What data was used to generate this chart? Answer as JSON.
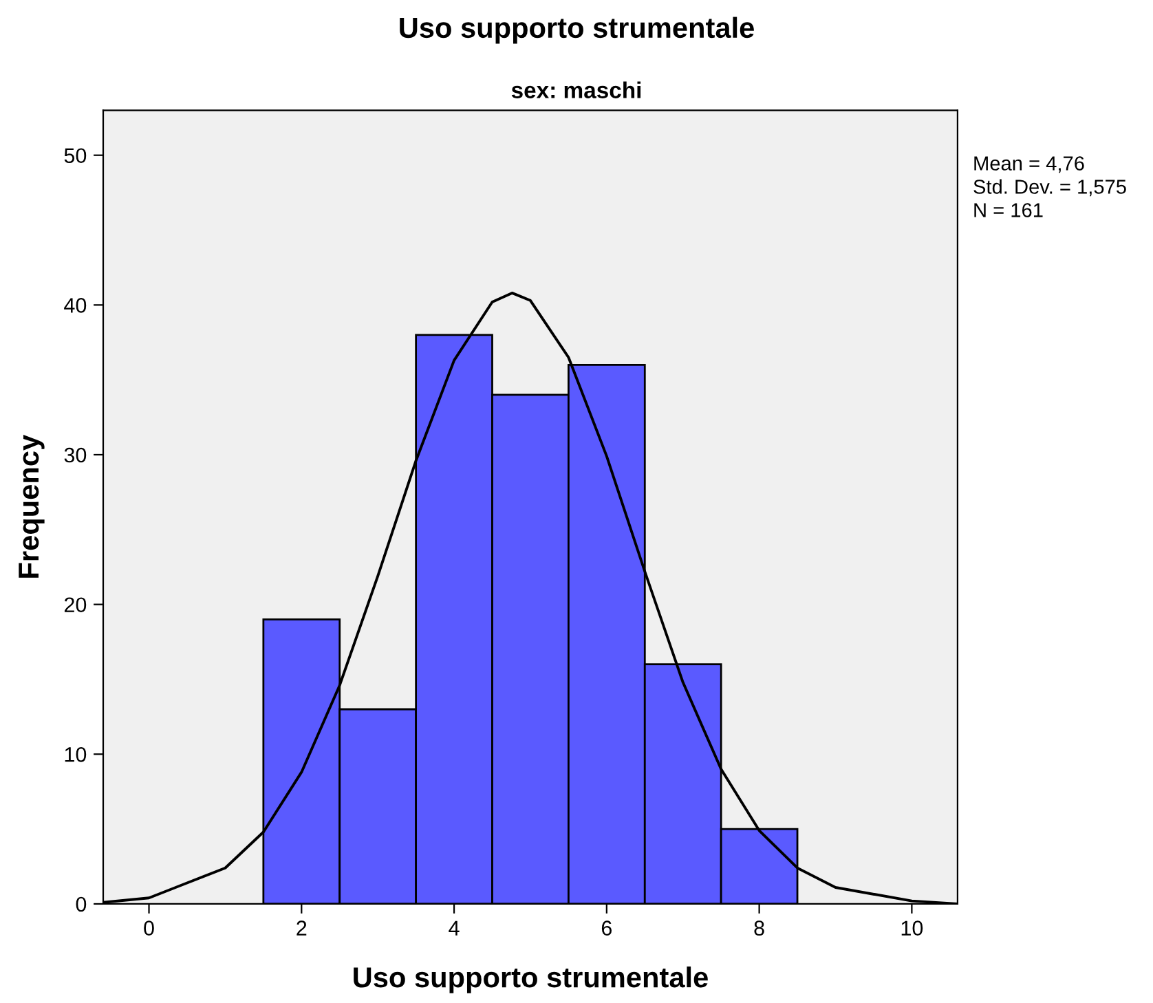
{
  "chart_data": {
    "type": "histogram",
    "title": "Uso supporto strumentale",
    "subtitle": "sex: maschi",
    "xlabel": "Uso supporto strumentale",
    "ylabel": "Frequency",
    "bins": [
      1.5,
      2.5,
      3.5,
      4.5,
      5.5,
      6.5,
      7.5,
      8.5
    ],
    "values": [
      19,
      13,
      38,
      34,
      36,
      16,
      5
    ],
    "color": "#5a5aff",
    "series": [
      {
        "type": "line",
        "color": "#000000",
        "x": [
          -0.6,
          0,
          1,
          1.5,
          2,
          2.5,
          3,
          3.5,
          4,
          4.5,
          4.76,
          5,
          5.5,
          6,
          6.5,
          7,
          7.5,
          8,
          8.5,
          9,
          10,
          10.6
        ],
        "values": [
          0.1,
          0.4,
          2.4,
          4.8,
          8.8,
          14.6,
          21.9,
          29.6,
          36.3,
          40.2,
          40.8,
          40.3,
          36.5,
          29.9,
          22.2,
          14.8,
          9.0,
          4.9,
          2.4,
          1.1,
          0.2,
          0.0
        ]
      }
    ],
    "xlim": [
      -0.6,
      10.6
    ],
    "xticks": [
      0,
      2,
      4,
      6,
      8,
      10
    ],
    "ylim": [
      0,
      53
    ],
    "yticks": [
      0,
      10,
      20,
      30,
      40,
      50
    ],
    "grid": false,
    "legend": false,
    "annotations": [
      "Mean = 4,76",
      "Std. Dev. = 1,575",
      "N = 161"
    ]
  }
}
